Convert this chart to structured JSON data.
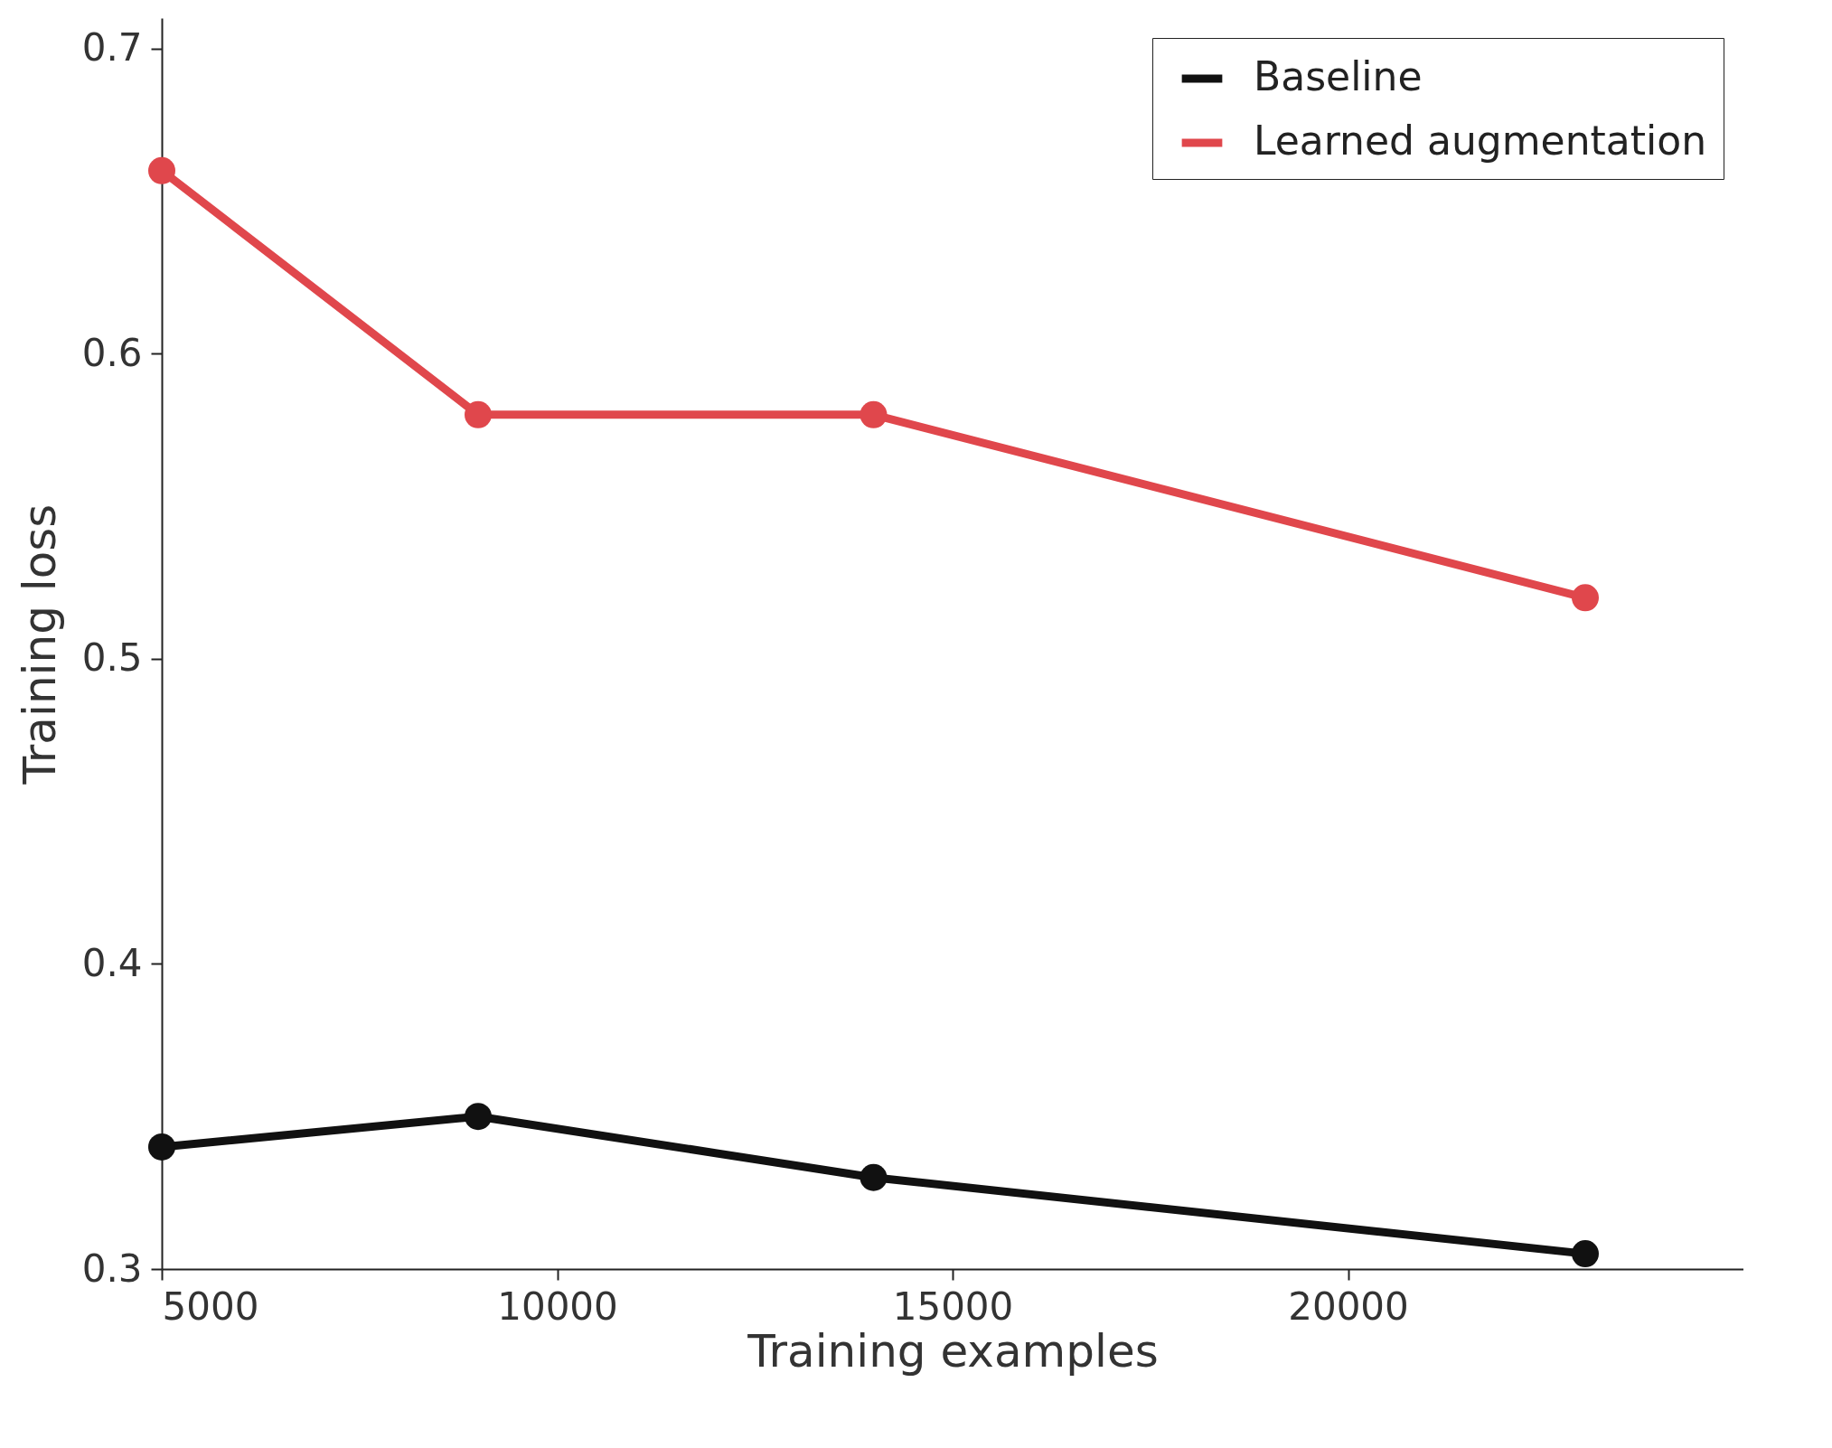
{
  "chart_data": {
    "type": "line",
    "xlabel": "Training examples",
    "ylabel": "Training loss",
    "x": [
      5000,
      9000,
      14000,
      23000
    ],
    "series": [
      {
        "name": "Baseline",
        "color": "#111111",
        "values": [
          0.34,
          0.35,
          0.33,
          0.305
        ]
      },
      {
        "name": "Learned augmentation",
        "color": "#e0474c",
        "values": [
          0.66,
          0.58,
          0.58,
          0.52
        ]
      }
    ],
    "xlim": [
      5000,
      25000
    ],
    "xticks": [
      5000,
      10000,
      15000,
      20000
    ],
    "ylim": [
      0.3,
      0.71
    ],
    "yticks": [
      0.3,
      0.4,
      0.5,
      0.6,
      0.7
    ],
    "legend": "top right",
    "marker": "circle"
  }
}
